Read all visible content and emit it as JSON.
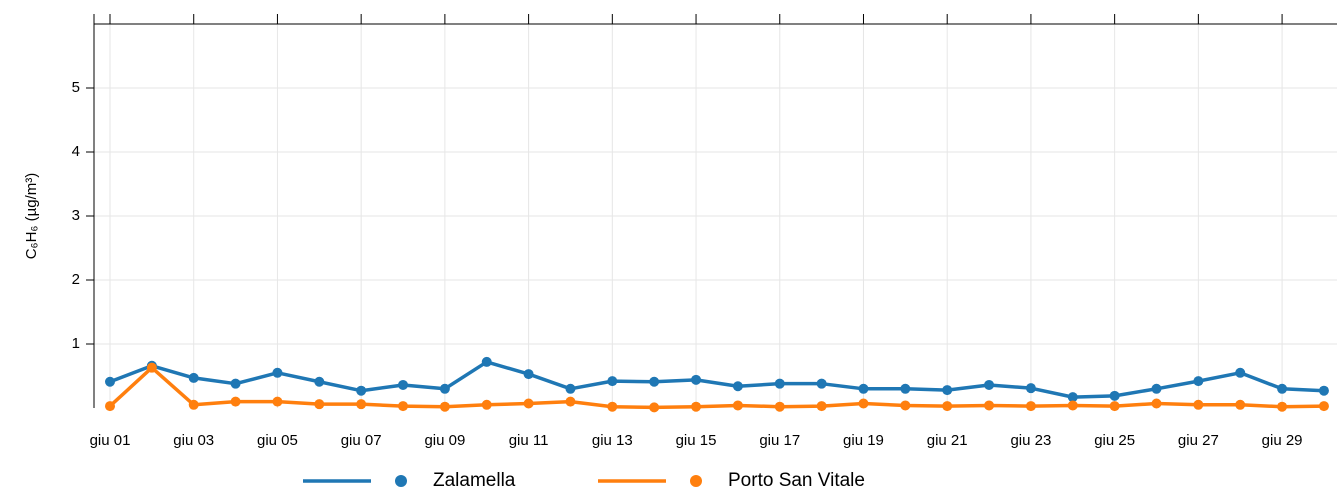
{
  "chart_data": {
    "type": "line",
    "ylabel": "C₆H₆ (µg/m³)",
    "categories": [
      "giu 01",
      null,
      "giu 03",
      null,
      "giu 05",
      null,
      "giu 07",
      null,
      "giu 09",
      null,
      "giu 11",
      null,
      "giu 13",
      null,
      "giu 15",
      null,
      "giu 17",
      null,
      "giu 19",
      null,
      "giu 21",
      null,
      "giu 23",
      null,
      "giu 25",
      null,
      "giu 27",
      null,
      "giu 29",
      null
    ],
    "series": [
      {
        "name": "Zalamella",
        "color": "#1f77b4",
        "values": [
          0.41,
          0.66,
          0.47,
          0.38,
          0.55,
          0.41,
          0.27,
          0.36,
          0.3,
          0.72,
          0.53,
          0.3,
          0.42,
          0.41,
          0.44,
          0.34,
          0.38,
          0.38,
          0.3,
          0.3,
          0.28,
          0.36,
          0.31,
          0.17,
          0.19,
          0.3,
          0.42,
          0.55,
          0.3,
          0.27
        ]
      },
      {
        "name": "Porto San Vitale",
        "color": "#ff7f0e",
        "values": [
          0.03,
          0.63,
          0.05,
          0.1,
          0.1,
          0.06,
          0.06,
          0.03,
          0.02,
          0.05,
          0.07,
          0.1,
          0.02,
          0.01,
          0.02,
          0.04,
          0.02,
          0.03,
          0.07,
          0.04,
          0.03,
          0.04,
          0.03,
          0.04,
          0.03,
          0.07,
          0.05,
          0.05,
          0.02,
          0.03
        ]
      }
    ],
    "ylim": [
      0,
      6
    ],
    "yticks": [
      1,
      2,
      3,
      4,
      5
    ],
    "grid": true,
    "legend": "bottom"
  }
}
